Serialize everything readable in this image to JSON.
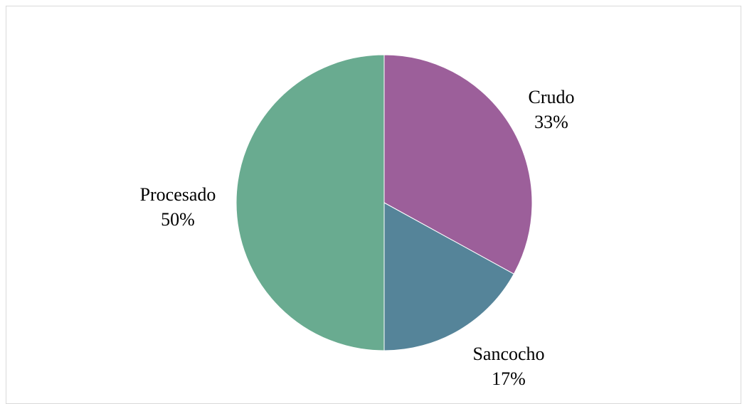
{
  "chart_data": {
    "type": "pie",
    "title": "",
    "series": [
      {
        "slices": [
          {
            "label": "Crudo",
            "value": 33,
            "percent_label": "33%",
            "color": "#9c5f9a"
          },
          {
            "label": "Sancocho",
            "value": 17,
            "percent_label": "17%",
            "color": "#558499"
          },
          {
            "label": "Procesado",
            "value": 50,
            "percent_label": "50%",
            "color": "#69ab90"
          }
        ]
      }
    ],
    "legend": "none",
    "data_labels": "category name and percentage, outside slices"
  }
}
